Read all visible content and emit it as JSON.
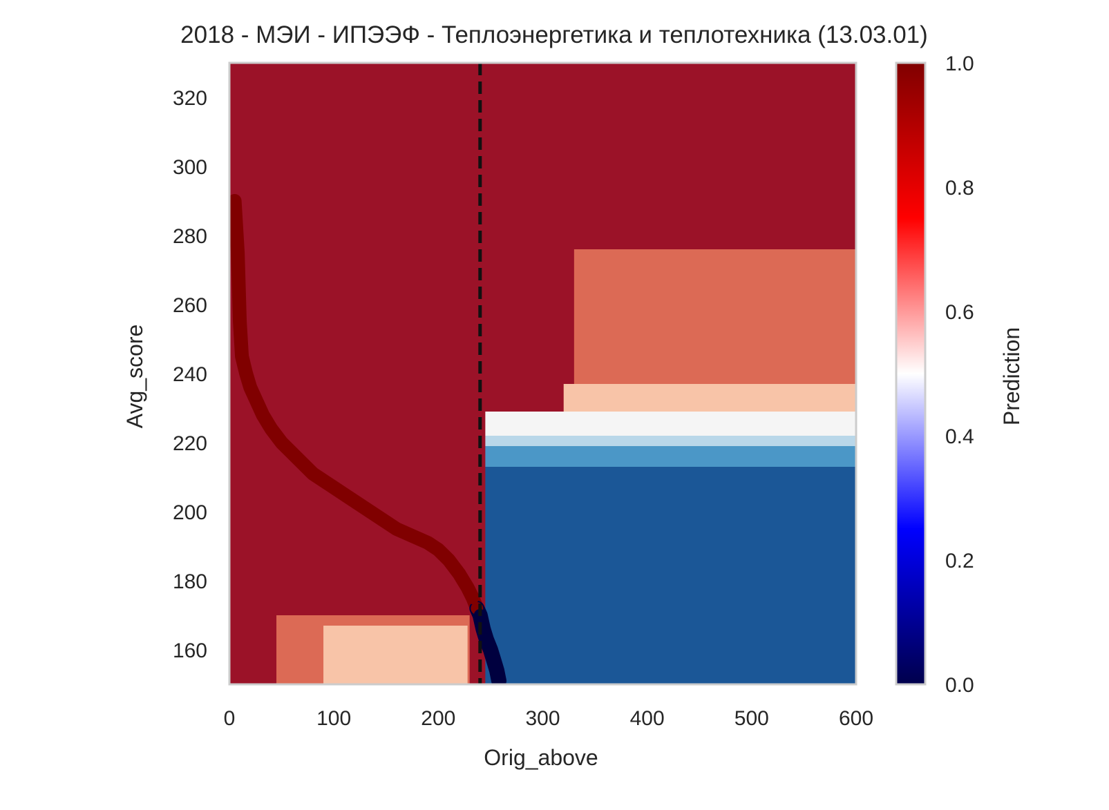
{
  "chart_data": {
    "type": "heatmap",
    "title": "2018 - МЭИ - ИПЭЭФ - Теплоэнергетика и теплотехника (13.03.01)",
    "xlabel": "Orig_above",
    "ylabel": "Avg_score",
    "xlim": [
      0,
      600
    ],
    "ylim": [
      150,
      330
    ],
    "x_ticks": [
      "0",
      "100",
      "200",
      "300",
      "400",
      "500",
      "600"
    ],
    "y_ticks": [
      "160",
      "180",
      "200",
      "220",
      "240",
      "260",
      "280",
      "300",
      "320"
    ],
    "grid": false,
    "threshold_line": {
      "x": 240,
      "style": "dashed",
      "color": "#111111"
    },
    "colormap": "seismic",
    "colorbar": {
      "label": "Prediction",
      "range": [
        0,
        1
      ],
      "ticks": [
        "0.0",
        "0.2",
        "0.4",
        "0.6",
        "0.8",
        "1.0"
      ]
    },
    "regions": [
      {
        "name": "high",
        "value": 0.95,
        "color": "#9b1228",
        "x": [
          0,
          600
        ],
        "y": [
          150,
          330
        ]
      },
      {
        "name": "right-band-0.8",
        "value": 0.78,
        "color": "#dc6a55",
        "x": [
          330,
          600
        ],
        "y": [
          237,
          276
        ]
      },
      {
        "name": "right-band-0.65",
        "value": 0.65,
        "color": "#f8c4a8",
        "x": [
          320,
          600
        ],
        "y": [
          229,
          237
        ]
      },
      {
        "name": "right-band-0.5",
        "value": 0.5,
        "color": "#f5f5f5",
        "x": [
          245,
          600
        ],
        "y": [
          222,
          229
        ]
      },
      {
        "name": "right-band-0.35",
        "value": 0.35,
        "color": "#b9d7e9",
        "x": [
          245,
          600
        ],
        "y": [
          219,
          222
        ]
      },
      {
        "name": "right-band-0.25",
        "value": 0.25,
        "color": "#4b97c7",
        "x": [
          245,
          600
        ],
        "y": [
          213,
          219
        ]
      },
      {
        "name": "right-low",
        "value": 0.1,
        "color": "#1b5797",
        "x": [
          245,
          600
        ],
        "y": [
          150,
          213
        ]
      },
      {
        "name": "left-band-0.8",
        "value": 0.78,
        "color": "#dc6a55",
        "x": [
          45,
          230
        ],
        "y": [
          150,
          170
        ]
      },
      {
        "name": "left-band-0.65",
        "value": 0.65,
        "color": "#f8c4a8",
        "x": [
          90,
          228
        ],
        "y": [
          150,
          167
        ]
      }
    ],
    "series": [
      {
        "kind": "scatter-trace",
        "color_above": "#800000",
        "color_below": "#00003f",
        "x": [
          5,
          8,
          10,
          12,
          16,
          20,
          26,
          32,
          40,
          50,
          60,
          70,
          80,
          90,
          100,
          115,
          130,
          145,
          160,
          175,
          190,
          200,
          210,
          220,
          228,
          233,
          237,
          240,
          243,
          246,
          250,
          253,
          256,
          258
        ],
        "y": [
          290,
          275,
          255,
          245,
          240,
          236,
          232,
          228,
          224,
          220,
          217,
          214,
          211,
          209,
          207,
          204,
          201,
          198,
          195,
          193,
          191,
          189,
          186,
          182,
          178,
          175,
          172,
          170,
          166,
          163,
          160,
          157,
          154,
          151
        ]
      }
    ]
  }
}
